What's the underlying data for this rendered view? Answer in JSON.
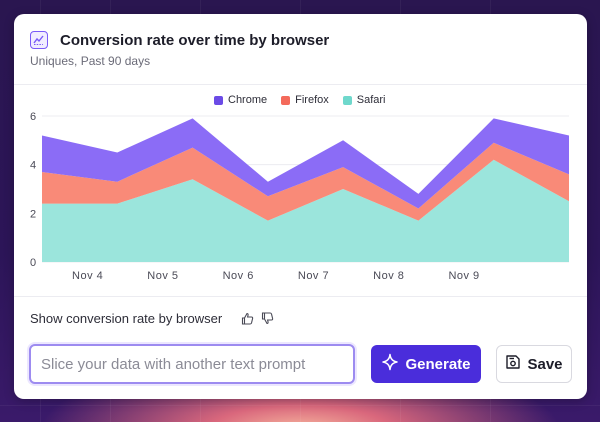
{
  "header": {
    "title": "Conversion rate over time by browser",
    "subtitle": "Uniques, Past 90 days",
    "icon": "line-chart-icon"
  },
  "colors": {
    "chrome": "#8b6cf6",
    "firefox": "#f98a78",
    "safari": "#9be5dc",
    "accent": "#4a2ddb"
  },
  "chart_data": {
    "type": "area",
    "stacked": true,
    "legend_position": "top-center",
    "grid": true,
    "x_tick_labels": [
      "Nov 4",
      "Nov 5",
      "Nov 6",
      "Nov 7",
      "Nov 8",
      "Nov 9"
    ],
    "y_tick_labels": [
      "0",
      "2",
      "4",
      "6"
    ],
    "ylim": [
      0,
      6
    ],
    "x": [
      0,
      1,
      2,
      3,
      4,
      5,
      6,
      7
    ],
    "series": [
      {
        "name": "Safari",
        "values": [
          2.4,
          2.4,
          3.4,
          1.7,
          3.0,
          1.7,
          4.2,
          2.5
        ]
      },
      {
        "name": "Firefox",
        "values": [
          1.3,
          0.9,
          1.3,
          1.0,
          0.9,
          0.5,
          0.7,
          1.1
        ]
      },
      {
        "name": "Chrome",
        "values": [
          1.5,
          1.2,
          1.2,
          0.6,
          1.1,
          0.6,
          1.0,
          1.6
        ]
      }
    ]
  },
  "footer": {
    "prompt_text": "Show conversion rate by browser",
    "input_placeholder": "Slice your data with another text prompt",
    "generate_label": "Generate",
    "save_label": "Save"
  }
}
